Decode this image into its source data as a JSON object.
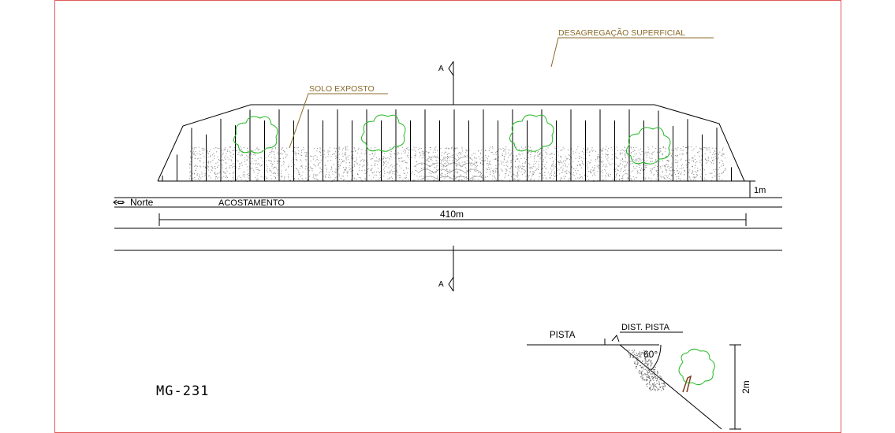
{
  "labels": {
    "surface_disaggregation": "DESAGREGAÇÃO SUPERFICIAL",
    "exposed_soil": "SOLO EXPOSTO",
    "section_top": "A",
    "section_bottom": "A",
    "north": "Norte",
    "shoulder": "ACOSTAMENTO",
    "length": "410m",
    "height_plan": "1m",
    "road_id": "MG-231",
    "lane": "PISTA",
    "lane_distance": "DIST. PISTA",
    "angle": "60°",
    "height_section": "2m"
  },
  "colors": {
    "frame": "#e05a5a",
    "line": "#000000",
    "leader_text": "#8b6b2a",
    "vegetation": "#22b822",
    "soil": "#8a8a8a"
  }
}
